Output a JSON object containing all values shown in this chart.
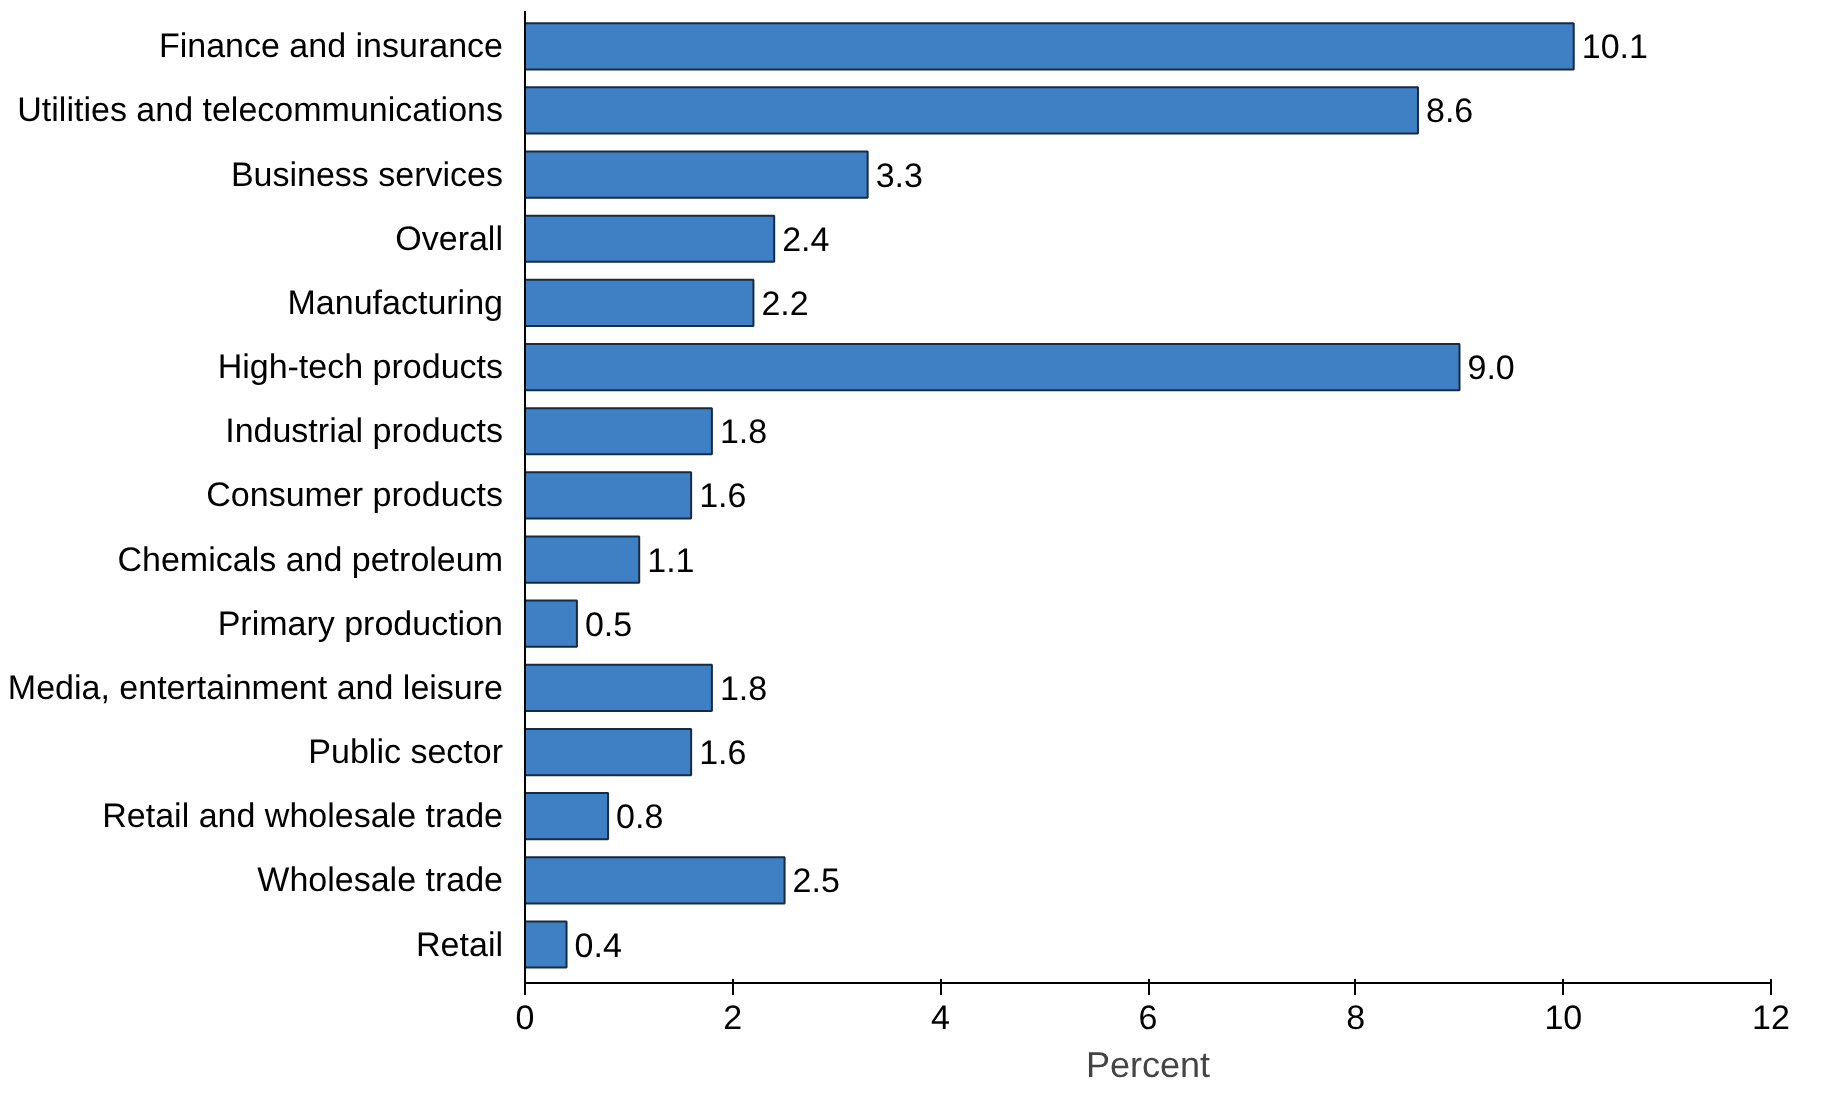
{
  "chart_data": {
    "type": "bar",
    "orientation": "horizontal",
    "xlabel": "Percent",
    "categories": [
      "Finance and insurance",
      "Utilities and telecommunications",
      "Business services",
      "Overall",
      "Manufacturing",
      "High-tech products",
      "Industrial products",
      "Consumer products",
      "Chemicals and petroleum",
      "Primary production",
      "Media, entertainment and leisure",
      "Public sector",
      "Retail and wholesale trade",
      "Wholesale trade",
      "Retail"
    ],
    "values": [
      10.1,
      8.6,
      3.3,
      2.4,
      2.2,
      9.0,
      1.8,
      1.6,
      1.1,
      0.5,
      1.8,
      1.6,
      0.8,
      2.5,
      0.4
    ],
    "value_labels": [
      "10.1",
      "8.6",
      "3.3",
      "2.4",
      "2.2",
      "9.0",
      "1.8",
      "1.6",
      "1.1",
      "0.5",
      "1.8",
      "1.6",
      "0.8",
      "2.5",
      "0.4"
    ],
    "color": "#3f7fc4",
    "xlim": [
      0,
      12
    ],
    "xticks": [
      0,
      2,
      4,
      6,
      8,
      10,
      12
    ],
    "grid": false
  }
}
